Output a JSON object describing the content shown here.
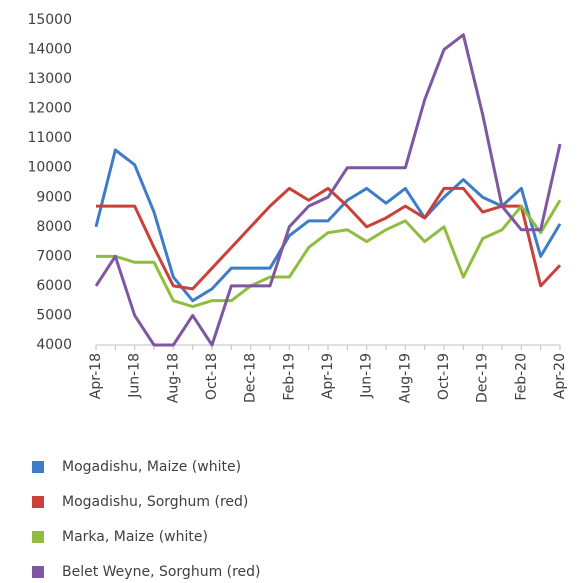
{
  "chart_data": {
    "type": "line",
    "categories": [
      "Apr-18",
      null,
      "Jun-18",
      null,
      "Aug-18",
      null,
      "Oct-18",
      null,
      "Dec-18",
      null,
      "Feb-19",
      null,
      "Apr-19",
      null,
      "Jun-19",
      null,
      "Aug-19",
      null,
      "Oct-19",
      null,
      "Dec-19",
      null,
      "Feb-20",
      null,
      "Apr-20"
    ],
    "series": [
      {
        "name": "Mogadishu, Maize (white)",
        "color": "#3d7cc9",
        "values": [
          8000,
          10600,
          10100,
          8500,
          6300,
          5500,
          5900,
          6600,
          6600,
          6600,
          7700,
          8200,
          8200,
          8900,
          9300,
          8800,
          9300,
          8300,
          9000,
          9600,
          9000,
          8700,
          9300,
          7000,
          8100
        ]
      },
      {
        "name": "Mogadishu, Sorghum (red)",
        "color": "#c9413a",
        "values": [
          8700,
          8700,
          8700,
          7300,
          6000,
          5900,
          6600,
          7300,
          8000,
          8700,
          9300,
          8900,
          9300,
          8700,
          8000,
          8300,
          8700,
          8300,
          9300,
          9300,
          8500,
          8700,
          8700,
          6000,
          6700
        ]
      },
      {
        "name": "Marka, Maize (white)",
        "color": "#8fbd3f",
        "values": [
          7000,
          7000,
          6800,
          6800,
          5500,
          5300,
          5500,
          5500,
          6000,
          6300,
          6300,
          7300,
          7800,
          7900,
          7500,
          7900,
          8200,
          7500,
          8000,
          6300,
          7600,
          7900,
          8700,
          7800,
          8900
        ]
      },
      {
        "name": "Belet Weyne, Sorghum (red)",
        "color": "#7f57a0",
        "values": [
          6000,
          7000,
          5000,
          4000,
          4000,
          5000,
          4000,
          6000,
          6000,
          6000,
          8000,
          8700,
          9000,
          10000,
          10000,
          10000,
          10000,
          12300,
          14000,
          14500,
          11800,
          8700,
          7900,
          7900,
          10800
        ]
      }
    ],
    "ylim": [
      4000,
      15000
    ],
    "yticks": [
      4000,
      5000,
      6000,
      7000,
      8000,
      9000,
      10000,
      11000,
      12000,
      13000,
      14000,
      15000
    ]
  }
}
